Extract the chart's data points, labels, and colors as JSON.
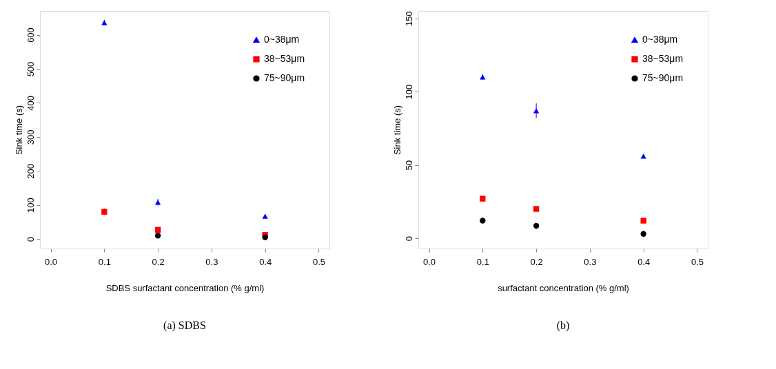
{
  "chart_data": [
    {
      "type": "scatter",
      "title": "(a) SDBS",
      "xlabel": "SDBS surfactant concentration (% g/ml)",
      "ylabel": "Sink time (s)",
      "x": [
        0.1,
        0.2,
        0.4
      ],
      "xlim": [
        -0.02,
        0.52
      ],
      "xticks": [
        {
          "value": 0,
          "label": "0.0"
        },
        0.1,
        0.2,
        0.3,
        0.4,
        0.5
      ],
      "ylim": [
        -28,
        670
      ],
      "yticks": [
        0,
        100,
        200,
        300,
        400,
        500,
        600
      ],
      "grid": false,
      "legend": "top right",
      "series": [
        {
          "name": "0~38μm",
          "color": "#0000ff",
          "marker": "triangle",
          "values": [
            636,
            108,
            67
          ],
          "errors": [
            8,
            10,
            6
          ]
        },
        {
          "name": "38~53μm",
          "color": "#ff0000",
          "marker": "square",
          "values": [
            80,
            27,
            12
          ],
          "errors": [
            10,
            4,
            3
          ]
        },
        {
          "name": "75~90μm",
          "color": "#000000",
          "marker": "circle",
          "values": [
            null,
            10,
            5
          ],
          "errors": [
            null,
            3,
            2
          ]
        }
      ]
    },
    {
      "type": "scatter",
      "title": "(b)",
      "xlabel": "surfactant concentration (% g/ml)",
      "ylabel": "Sink time (s)",
      "x": [
        0.1,
        0.2,
        0.4
      ],
      "xlim": [
        -0.02,
        0.52
      ],
      "xticks": [
        {
          "value": 0,
          "label": "0.0"
        },
        0.1,
        0.2,
        0.3,
        0.4,
        0.5
      ],
      "ylim": [
        -7,
        155
      ],
      "yticks": [
        0,
        50,
        100,
        150
      ],
      "grid": false,
      "legend": "top right",
      "series": [
        {
          "name": "0~38μm",
          "color": "#0000ff",
          "marker": "triangle",
          "values": [
            110,
            87,
            56
          ],
          "errors": [
            2,
            5,
            1.5
          ]
        },
        {
          "name": "38~53μm",
          "color": "#ff0000",
          "marker": "square",
          "values": [
            27,
            20,
            12
          ],
          "errors": [
            2,
            1.5,
            1.5
          ]
        },
        {
          "name": "75~90μm",
          "color": "#000000",
          "marker": "circle",
          "values": [
            12,
            8.5,
            3
          ],
          "errors": [
            1,
            1,
            1
          ]
        }
      ]
    }
  ]
}
